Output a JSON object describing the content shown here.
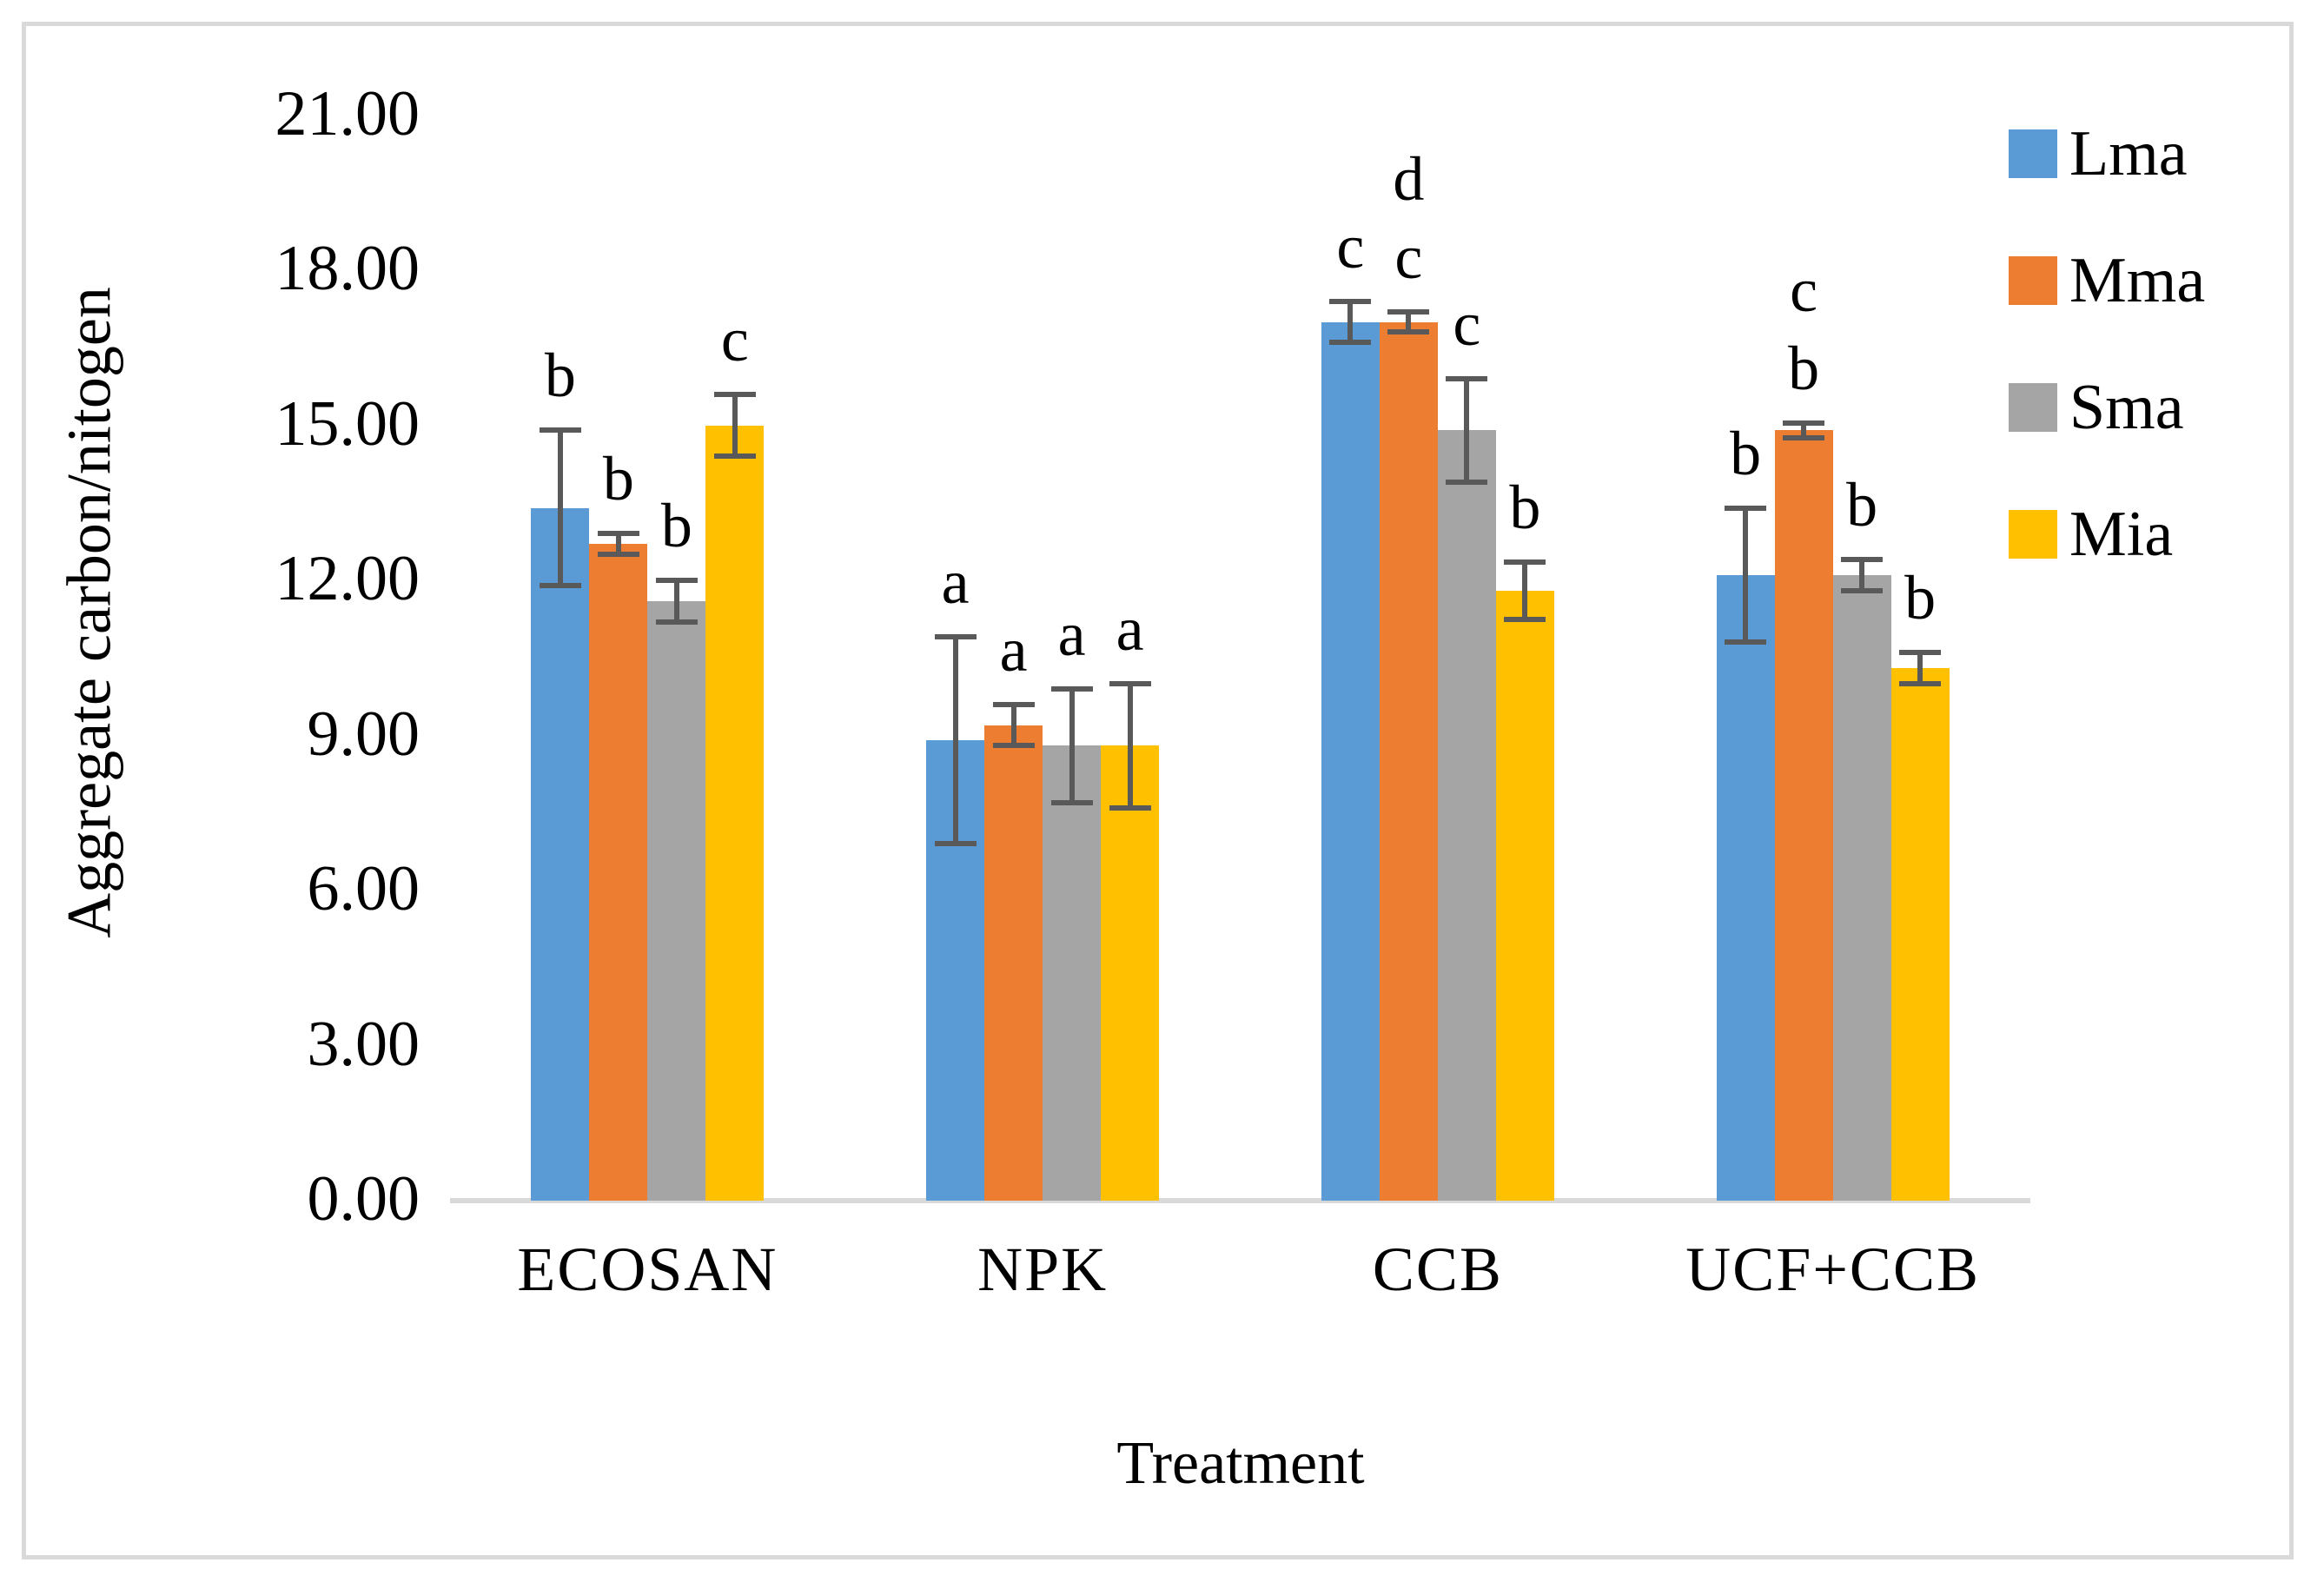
{
  "figure": {
    "background": "#ffffff",
    "border_color": "#d9d9d9"
  },
  "chart_data": {
    "type": "bar",
    "title": "",
    "xlabel": "Treatment",
    "ylabel": "Aggregate carbon/nitogen",
    "ylim": [
      0,
      21
    ],
    "ytick_step": 3,
    "ytick_labels": [
      "0.00",
      "3.00",
      "6.00",
      "9.00",
      "12.00",
      "15.00",
      "18.00",
      "21.00"
    ],
    "grid": false,
    "legend_position": "right",
    "axis_line_color": "#d9d9d9",
    "error_bar_color": "#595959",
    "categories": [
      "ECOSAN",
      "NPK",
      "CCB",
      "UCF+CCB"
    ],
    "series": [
      {
        "name": "Lma",
        "color": "#5B9BD5",
        "values": [
          13.4,
          8.9,
          17.0,
          12.1
        ],
        "errors": [
          1.5,
          2.0,
          0.4,
          1.3
        ],
        "letters": [
          [
            "b"
          ],
          [
            "a"
          ],
          [
            "c"
          ],
          [
            "b"
          ]
        ]
      },
      {
        "name": "Mma",
        "color": "#ED7D31",
        "values": [
          12.7,
          9.2,
          17.0,
          14.9
        ],
        "errors": [
          0.2,
          0.4,
          0.2,
          0.15
        ],
        "letters": [
          [
            "b"
          ],
          [
            "a"
          ],
          [
            "d",
            "c"
          ],
          [
            "c",
            "b"
          ]
        ]
      },
      {
        "name": "Sma",
        "color": "#A5A5A5",
        "values": [
          11.6,
          8.8,
          14.9,
          12.1
        ],
        "errors": [
          0.4,
          1.1,
          1.0,
          0.3
        ],
        "letters": [
          [
            "b"
          ],
          [
            "a"
          ],
          [
            "c"
          ],
          [
            "b"
          ]
        ]
      },
      {
        "name": "Mia",
        "color": "#FFC000",
        "values": [
          15.0,
          8.8,
          11.8,
          10.3
        ],
        "errors": [
          0.6,
          1.2,
          0.55,
          0.3
        ],
        "letters": [
          [
            "c"
          ],
          [
            "a"
          ],
          [
            "b"
          ],
          [
            "b"
          ]
        ]
      }
    ]
  }
}
